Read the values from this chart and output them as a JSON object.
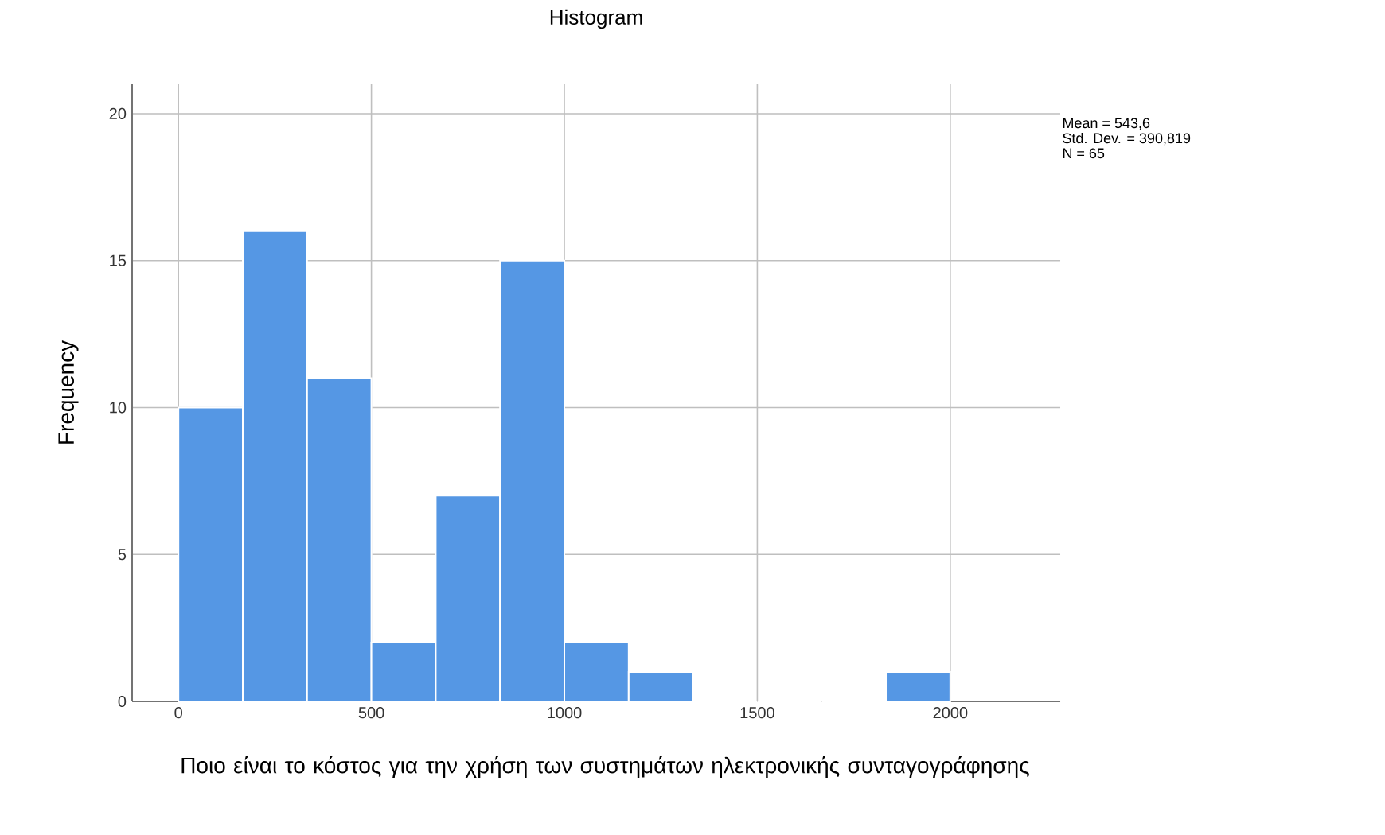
{
  "chart_data": {
    "type": "histogram",
    "title": "Histogram",
    "xlabel": "Ποιο είναι το κόστος για την χρήση των συστημάτων ηλεκτρονικής συνταγογράφησης",
    "ylabel": "Frequency",
    "bins": [
      0,
      166.7,
      333.3,
      500,
      666.7,
      833.3,
      1000,
      1166.7,
      1333.3,
      1500,
      1666.7,
      1833.3,
      2000
    ],
    "values": [
      10,
      16,
      11,
      2,
      7,
      15,
      2,
      1,
      0,
      0,
      0,
      1
    ],
    "color": "#5597e4",
    "xlim": [
      -120,
      2285
    ],
    "ylim": [
      0,
      21
    ],
    "xticks": [
      0,
      500,
      1000,
      1500,
      2000
    ],
    "yticks": [
      0,
      5,
      10,
      15,
      20
    ],
    "grid": true,
    "annotations": [
      "Mean = 543,6",
      "Std. Dev. = 390,819",
      "N = 65"
    ]
  }
}
